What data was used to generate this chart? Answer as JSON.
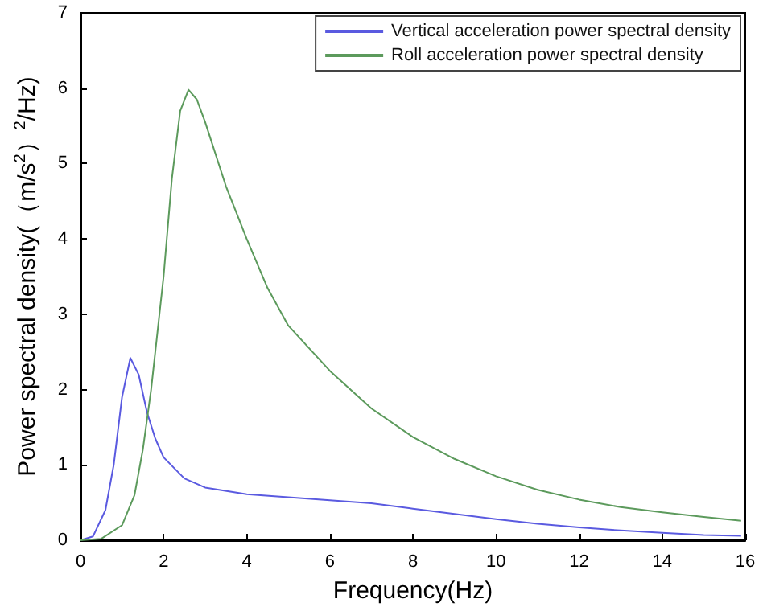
{
  "chart_data": {
    "type": "line",
    "xlabel": "Frequency(Hz)",
    "ylabel": "Power spectral density(（m/s$^{2}$）$^{2}$/Hz)",
    "xlim": [
      0,
      16
    ],
    "xticks": [
      0,
      2,
      4,
      6,
      8,
      10,
      12,
      14,
      16
    ],
    "ylim": [
      0,
      7
    ],
    "yticks": [
      0,
      1,
      2,
      3,
      4,
      5,
      6,
      7
    ],
    "grid": false,
    "legend": "top right",
    "marker": "none",
    "line_style": "solid",
    "series": [
      {
        "name": "Vertical acceleration power spectral density",
        "color": "#5a5ae0",
        "x": [
          0,
          0.3,
          0.6,
          0.8,
          1.0,
          1.2,
          1.4,
          1.6,
          1.8,
          2.0,
          2.5,
          3,
          4,
          5,
          6,
          7,
          8,
          9,
          10,
          11,
          12,
          13,
          14,
          15,
          15.9
        ],
        "values": [
          0,
          0.05,
          0.4,
          1.0,
          1.9,
          2.42,
          2.2,
          1.7,
          1.35,
          1.1,
          0.82,
          0.7,
          0.61,
          0.57,
          0.53,
          0.49,
          0.42,
          0.35,
          0.28,
          0.22,
          0.17,
          0.13,
          0.1,
          0.07,
          0.06
        ]
      },
      {
        "name": "Roll acceleration power spectral density",
        "color": "#5c9a5c",
        "x": [
          0,
          0.5,
          1.0,
          1.3,
          1.5,
          1.7,
          2.0,
          2.2,
          2.4,
          2.6,
          2.8,
          3.0,
          3.5,
          4,
          4.5,
          5,
          6,
          7,
          8,
          9,
          10,
          11,
          12,
          13,
          14,
          15,
          15.9
        ],
        "values": [
          0,
          0.02,
          0.2,
          0.6,
          1.2,
          2.0,
          3.5,
          4.8,
          5.7,
          5.98,
          5.85,
          5.55,
          4.7,
          4.0,
          3.35,
          2.85,
          2.25,
          1.75,
          1.37,
          1.08,
          0.85,
          0.67,
          0.54,
          0.44,
          0.37,
          0.31,
          0.26
        ]
      }
    ]
  }
}
